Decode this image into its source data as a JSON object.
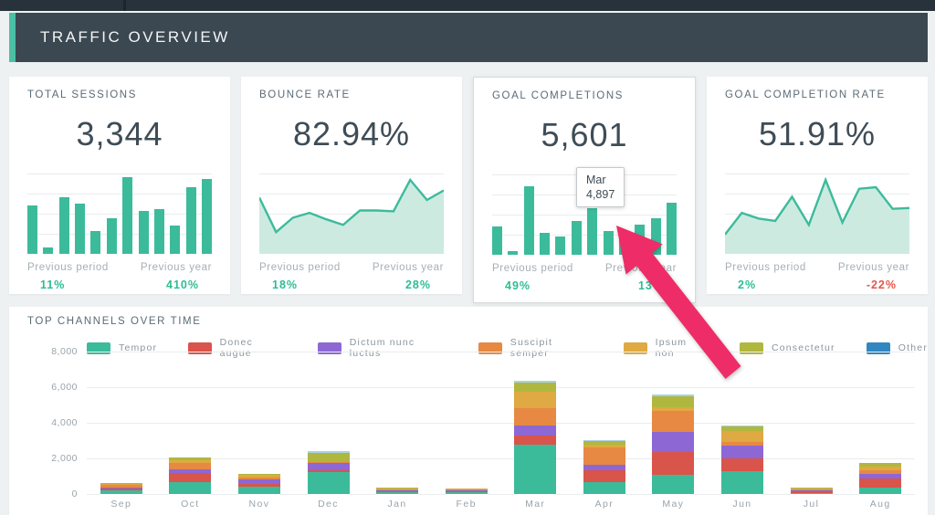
{
  "header": {
    "title": "TRAFFIC OVERVIEW"
  },
  "cards": [
    {
      "title": "TOTAL SESSIONS",
      "value": "3,344",
      "prev_period_label": "Previous period",
      "prev_period_value": "11%",
      "prev_year_label": "Previous year",
      "prev_year_value": "410%"
    },
    {
      "title": "BOUNCE RATE",
      "value": "82.94%",
      "prev_period_label": "Previous period",
      "prev_period_value": "18%",
      "prev_year_label": "Previous year",
      "prev_year_value": "28%"
    },
    {
      "title": "GOAL COMPLETIONS",
      "value": "5,601",
      "prev_period_label": "Previous period",
      "prev_period_value": "49%",
      "prev_year_label": "Previous year",
      "prev_year_value": "13%",
      "tooltip": {
        "label": "Mar",
        "value": "4,897"
      }
    },
    {
      "title": "GOAL COMPLETION RATE",
      "value": "51.91%",
      "prev_period_label": "Previous period",
      "prev_period_value": "2%",
      "prev_year_label": "Previous year",
      "prev_year_value": "-22%"
    }
  ],
  "channels_title": "TOP CHANNELS OVER TIME",
  "colors": {
    "accent_teal": "#3cbb9b",
    "area_fill": "#cdeae1",
    "positive": "#2dbd92",
    "negative": "#e2574c",
    "annotation_arrow": "#ee2c68",
    "header_bg": "#3b4851",
    "header_accent": "#4cc0a4"
  },
  "chart_data": [
    {
      "type": "bar",
      "title": "TOTAL SESSIONS sparkline",
      "color": "#3cbb9b",
      "values_relative": [
        0.6,
        0.08,
        0.7,
        0.62,
        0.28,
        0.44,
        0.95,
        0.53,
        0.56,
        0.35,
        0.83,
        0.93
      ]
    },
    {
      "type": "area",
      "title": "BOUNCE RATE sparkline",
      "color": "#3cbb9b",
      "values_relative": [
        0.7,
        0.27,
        0.45,
        0.51,
        0.43,
        0.36,
        0.54,
        0.54,
        0.53,
        0.92,
        0.67,
        0.79
      ]
    },
    {
      "type": "bar",
      "title": "GOAL COMPLETIONS sparkline",
      "color": "#3cbb9b",
      "values_relative": [
        0.35,
        0.05,
        0.85,
        0.27,
        0.23,
        0.42,
        0.58,
        0.3,
        0.3,
        0.37,
        0.46,
        0.65
      ],
      "highlighted_point": {
        "label": "Mar",
        "value": 4897
      }
    },
    {
      "type": "area",
      "title": "GOAL COMPLETION RATE sparkline",
      "color": "#3cbb9b",
      "values_relative": [
        0.24,
        0.51,
        0.44,
        0.41,
        0.71,
        0.36,
        0.92,
        0.39,
        0.81,
        0.83,
        0.56,
        0.57
      ]
    },
    {
      "type": "stacked-bar",
      "title": "TOP CHANNELS OVER TIME",
      "categories": [
        "Sep",
        "Oct",
        "Nov",
        "Dec",
        "Jan",
        "Feb",
        "Mar",
        "Apr",
        "May",
        "Jun",
        "Jul",
        "Aug"
      ],
      "series": [
        {
          "name": "Tempor",
          "color": "#3cbb9b",
          "values": [
            210,
            680,
            420,
            1210,
            120,
            100,
            2760,
            690,
            1075,
            1290,
            70,
            340
          ]
        },
        {
          "name": "Donec augue",
          "color": "#d9544a",
          "values": [
            120,
            510,
            140,
            140,
            40,
            80,
            520,
            655,
            1280,
            710,
            90,
            510
          ]
        },
        {
          "name": "Dictum nunc luctus",
          "color": "#8d68d4",
          "values": [
            30,
            220,
            240,
            370,
            20,
            10,
            570,
            310,
            1110,
            730,
            30,
            290
          ]
        },
        {
          "name": "Suscipit semper",
          "color": "#e78943",
          "values": [
            120,
            340,
            140,
            70,
            60,
            50,
            980,
            980,
            1200,
            200,
            50,
            220
          ]
        },
        {
          "name": "Ipsum non",
          "color": "#dfa943",
          "values": [
            60,
            170,
            130,
            0,
            40,
            50,
            915,
            120,
            220,
            590,
            40,
            205
          ]
        },
        {
          "name": "Consectetur",
          "color": "#b0b73f",
          "values": [
            20,
            120,
            30,
            530,
            20,
            0,
            535,
            205,
            630,
            260,
            10,
            190
          ]
        },
        {
          "name": "Other",
          "color": "#3287c1",
          "bar_color": "#a8d2e6",
          "values": [
            0,
            0,
            0,
            110,
            0,
            0,
            100,
            70,
            85,
            80,
            0,
            0
          ]
        }
      ],
      "ylim": [
        0,
        8000
      ],
      "yticks": [
        "0",
        "2,000",
        "4,000",
        "6,000",
        "8,000"
      ],
      "grid": true,
      "legend_position": "top"
    }
  ]
}
